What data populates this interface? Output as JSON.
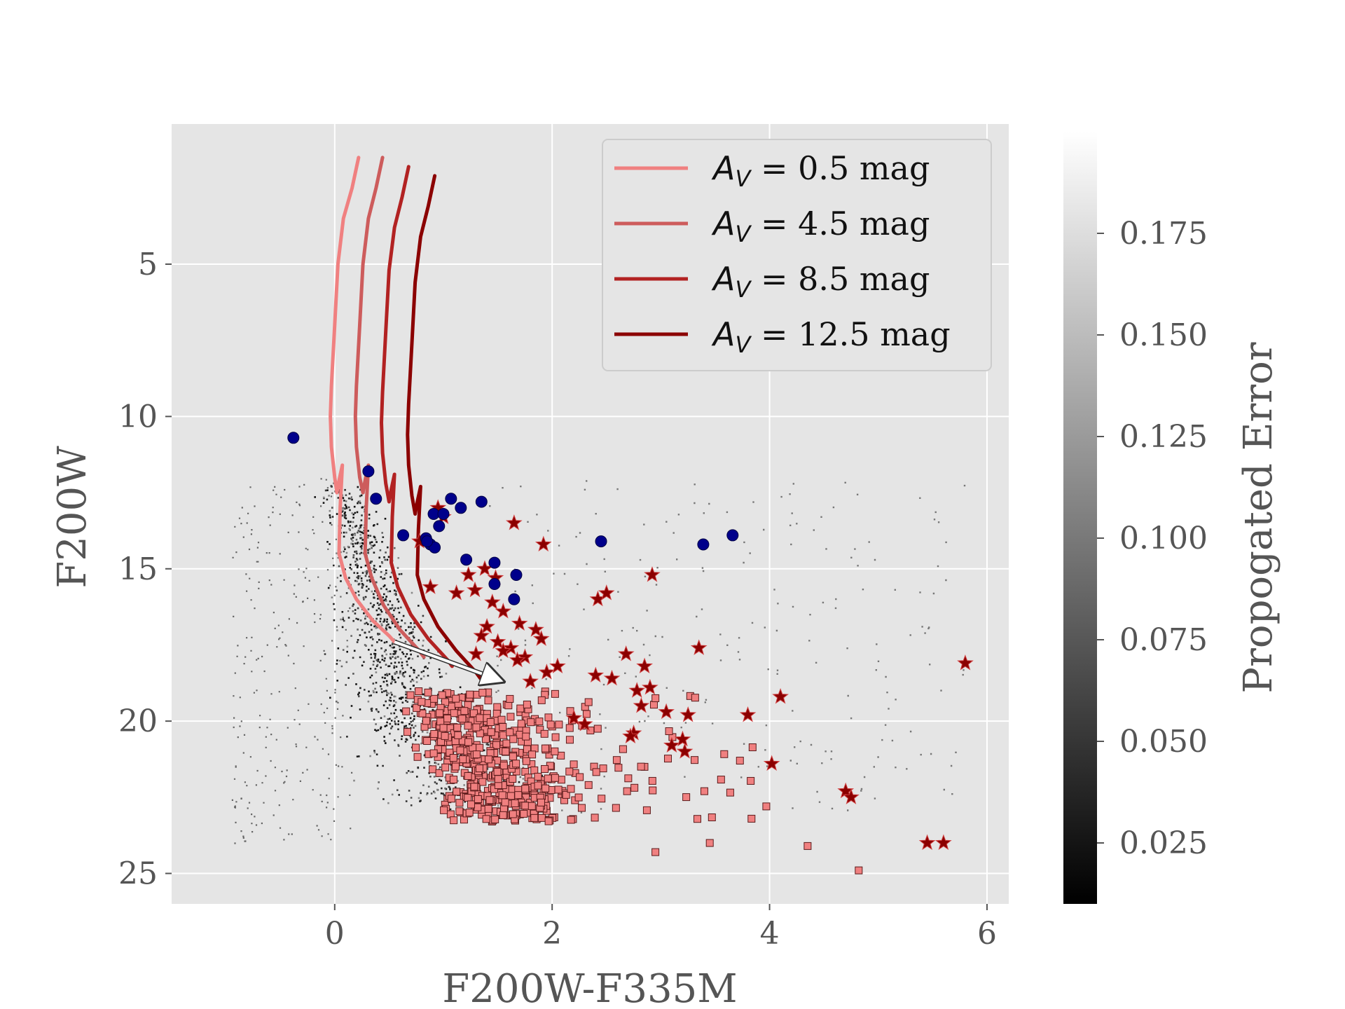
{
  "chart_data": {
    "type": "scatter",
    "title": "",
    "xlabel": "F200W-F335M",
    "ylabel": "F200W",
    "xlim": [
      -1.5,
      6.2
    ],
    "ylim": [
      26.0,
      0.4
    ],
    "y_inverted": true,
    "grid": true,
    "x_ticks": [
      0,
      2,
      4,
      6
    ],
    "x_tick_labels": [
      "0",
      "2",
      "4",
      "6"
    ],
    "y_ticks": [
      5,
      10,
      15,
      20,
      25
    ],
    "y_tick_labels": [
      "5",
      "10",
      "15",
      "20",
      "25"
    ],
    "colorbar": {
      "label": "Propogated Error",
      "range": [
        0.01,
        0.2
      ],
      "ticks": [
        0.025,
        0.05,
        0.075,
        0.1,
        0.125,
        0.15,
        0.175
      ],
      "tick_labels": [
        "0.025",
        "0.050",
        "0.075",
        "0.100",
        "0.125",
        "0.150",
        "0.175"
      ],
      "colormap": "gray"
    },
    "legend": {
      "placement": "top-right",
      "entries": [
        {
          "prefix": "A",
          "subscript": "V",
          "text": " = 0.5 mag",
          "color": "#f08080"
        },
        {
          "prefix": "A",
          "subscript": "V",
          "text": " = 4.5 mag",
          "color": "#cd5c5c"
        },
        {
          "prefix": "A",
          "subscript": "V",
          "text": " = 8.5 mag",
          "color": "#b22222"
        },
        {
          "prefix": "A",
          "subscript": "V",
          "text": " = 12.5 mag",
          "color": "#8b0000"
        }
      ]
    },
    "isochrones": [
      {
        "name": "A_V = 0.5 mag",
        "color": "#f08080",
        "x": [
          0.22,
          0.16,
          0.08,
          0.03,
          0.0,
          -0.03,
          -0.04,
          -0.03,
          0.0,
          0.02,
          0.04,
          0.07,
          0.05,
          0.04,
          0.1,
          0.2,
          0.35,
          0.5,
          0.55
        ],
        "y": [
          1.5,
          2.5,
          3.5,
          5.0,
          7.0,
          9.0,
          10.0,
          11.0,
          12.0,
          12.5,
          12.1,
          11.6,
          13.0,
          14.5,
          15.3,
          16.0,
          16.7,
          17.2,
          17.4
        ]
      },
      {
        "name": "A_V = 4.5 mag",
        "color": "#cd5c5c",
        "x": [
          0.44,
          0.38,
          0.31,
          0.26,
          0.23,
          0.2,
          0.19,
          0.2,
          0.23,
          0.26,
          0.28,
          0.31,
          0.29,
          0.28,
          0.34,
          0.45,
          0.6,
          0.78,
          0.82
        ],
        "y": [
          1.5,
          2.5,
          3.5,
          5.0,
          7.0,
          9.0,
          10.0,
          11.0,
          12.0,
          12.5,
          12.1,
          11.6,
          13.0,
          14.5,
          15.3,
          16.2,
          17.0,
          17.7,
          17.9
        ]
      },
      {
        "name": "A_V = 8.5 mag",
        "color": "#b22222",
        "x": [
          0.68,
          0.62,
          0.55,
          0.5,
          0.47,
          0.44,
          0.43,
          0.44,
          0.47,
          0.5,
          0.52,
          0.55,
          0.53,
          0.52,
          0.58,
          0.7,
          0.86,
          1.04,
          1.08
        ],
        "y": [
          1.8,
          2.8,
          3.8,
          5.2,
          7.2,
          9.2,
          10.2,
          11.2,
          12.2,
          12.8,
          12.4,
          11.9,
          13.3,
          14.8,
          15.6,
          16.5,
          17.3,
          18.0,
          18.2
        ]
      },
      {
        "name": "A_V = 12.5 mag",
        "color": "#8b0000",
        "x": [
          0.92,
          0.86,
          0.79,
          0.74,
          0.71,
          0.68,
          0.67,
          0.68,
          0.71,
          0.74,
          0.76,
          0.79,
          0.77,
          0.76,
          0.82,
          0.95,
          1.12,
          1.3,
          1.34
        ],
        "y": [
          2.1,
          3.1,
          4.1,
          5.6,
          7.6,
          9.6,
          10.6,
          11.6,
          12.6,
          13.2,
          12.8,
          12.3,
          13.7,
          15.2,
          16.0,
          16.9,
          17.7,
          18.4,
          18.6
        ]
      }
    ],
    "reddening_vector": {
      "x": [
        0.55,
        1.55
      ],
      "y": [
        17.4,
        18.7
      ],
      "color": "#ffffff"
    },
    "series": [
      {
        "name": "blue circles",
        "marker": "circle",
        "color": "#00008b",
        "x": [
          -0.38,
          0.31,
          0.38,
          1.07,
          1.35,
          0.91,
          1.0,
          1.16,
          0.63,
          0.84,
          0.88,
          0.92,
          0.85,
          1.21,
          1.47,
          1.67,
          1.47,
          1.65,
          2.45,
          3.39,
          3.66,
          0.96
        ],
        "y": [
          10.7,
          11.8,
          12.7,
          12.7,
          12.8,
          13.2,
          13.2,
          13.0,
          13.9,
          14.0,
          14.2,
          14.3,
          14.1,
          14.7,
          14.8,
          15.2,
          15.5,
          16.0,
          14.1,
          14.2,
          13.9,
          13.6
        ]
      },
      {
        "name": "dark red stars",
        "marker": "star",
        "color": "#8b0000",
        "x": [
          0.95,
          1.0,
          0.78,
          1.23,
          1.38,
          1.48,
          1.65,
          1.92,
          1.29,
          1.45,
          1.55,
          0.88,
          1.12,
          1.7,
          1.85,
          1.5,
          1.62,
          1.75,
          2.42,
          2.5,
          2.92,
          1.35,
          1.55,
          1.68,
          1.95,
          2.05,
          1.8,
          2.68,
          2.85,
          3.35,
          2.4,
          2.55,
          2.9,
          2.82,
          3.05,
          3.25,
          2.2,
          2.3,
          2.75,
          3.1,
          3.2,
          3.8,
          4.1,
          4.02,
          4.7,
          4.75,
          5.45,
          5.6,
          5.8,
          2.72,
          2.78,
          3.22,
          1.4,
          1.3,
          1.9
        ],
        "y": [
          13.0,
          13.3,
          14.1,
          15.2,
          15.0,
          15.3,
          13.5,
          14.2,
          15.7,
          16.1,
          16.4,
          15.6,
          15.8,
          16.8,
          17.0,
          17.4,
          17.6,
          17.9,
          16.0,
          15.8,
          15.2,
          17.2,
          17.7,
          18.0,
          18.4,
          18.2,
          18.7,
          17.8,
          18.2,
          17.6,
          18.5,
          18.6,
          18.9,
          19.5,
          19.7,
          19.8,
          19.9,
          20.1,
          20.4,
          20.8,
          20.6,
          19.8,
          19.2,
          21.4,
          22.3,
          22.5,
          24.0,
          24.0,
          18.1,
          20.5,
          19.0,
          21.0,
          16.9,
          17.8,
          17.3
        ]
      }
    ],
    "density_points": {
      "description": "dense grey-scale point cloud of sources colored by Propogated Error, concentrated between color 0.0-1.5 and F200W 12-23, with sparse outliers"
    },
    "pink_squares": {
      "description": "salmon squares with dark edges, faint sources at F200W 19-25 and color 0.3-4.8"
    }
  }
}
